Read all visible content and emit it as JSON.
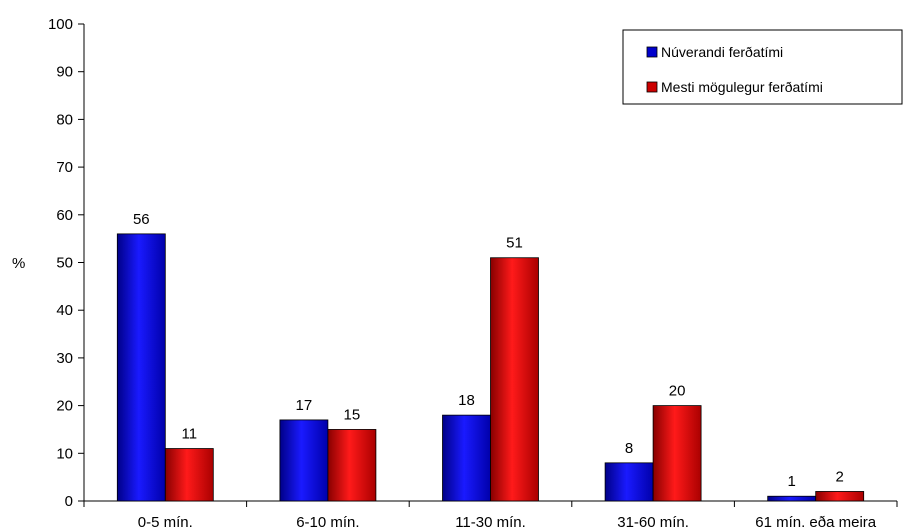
{
  "chart_data": {
    "type": "bar",
    "title": "",
    "xlabel": "",
    "ylabel": "%",
    "ylim": [
      0,
      100
    ],
    "yticks": [
      0,
      10,
      20,
      30,
      40,
      50,
      60,
      70,
      80,
      90,
      100
    ],
    "grid": false,
    "legend_position": "top-right",
    "categories": [
      "0-5 mín.",
      "6-10 mín.",
      "11-30 mín.",
      "31-60 mín.",
      "61 mín. eða meira"
    ],
    "series": [
      {
        "name": "Núverandi ferðatími",
        "color": "#0000cc",
        "values": [
          56,
          17,
          18,
          8,
          1
        ]
      },
      {
        "name": "Mesti mögulegur ferðatími",
        "color": "#cc0000",
        "values": [
          11,
          15,
          51,
          20,
          2
        ]
      }
    ]
  }
}
